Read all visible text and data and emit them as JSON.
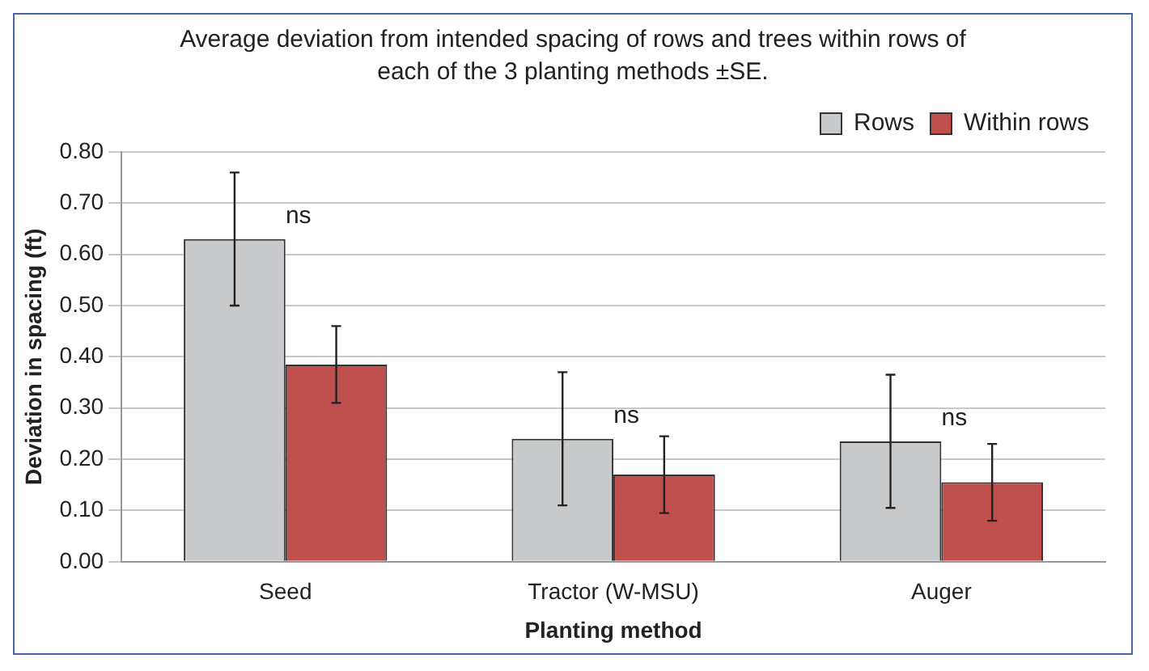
{
  "chart_data": {
    "type": "bar",
    "title": "Average deviation from intended spacing of rows and trees within rows of each of the 3 planting methods ±SE.",
    "xlabel": "Planting method",
    "ylabel": "Deviation in spacing (ft)",
    "categories": [
      "Seed",
      "Tractor (W-MSU)",
      "Auger"
    ],
    "series": [
      {
        "name": "Rows",
        "color": "#c8c9cb",
        "values": [
          0.63,
          0.24,
          0.235
        ],
        "errors": [
          0.13,
          0.13,
          0.13
        ]
      },
      {
        "name": "Within rows",
        "color": "#c0504d",
        "values": [
          0.385,
          0.17,
          0.155
        ],
        "errors": [
          0.075,
          0.075,
          0.075
        ]
      }
    ],
    "ylim": [
      0,
      0.8
    ],
    "yticks": [
      {
        "value": 0,
        "label": "0.00"
      },
      {
        "value": 0.1,
        "label": "0.10"
      },
      {
        "value": 0.2,
        "label": "0.20"
      },
      {
        "value": 0.3,
        "label": "0.30"
      },
      {
        "value": 0.4,
        "label": "0.40"
      },
      {
        "value": 0.5,
        "label": "0.50"
      },
      {
        "value": 0.6,
        "label": "0.60"
      },
      {
        "value": 0.7,
        "label": "0.70"
      },
      {
        "value": 0.8,
        "label": "0.80"
      }
    ],
    "grid": "y",
    "legend": "top right",
    "annotations": [
      "ns",
      "ns",
      "ns"
    ]
  }
}
